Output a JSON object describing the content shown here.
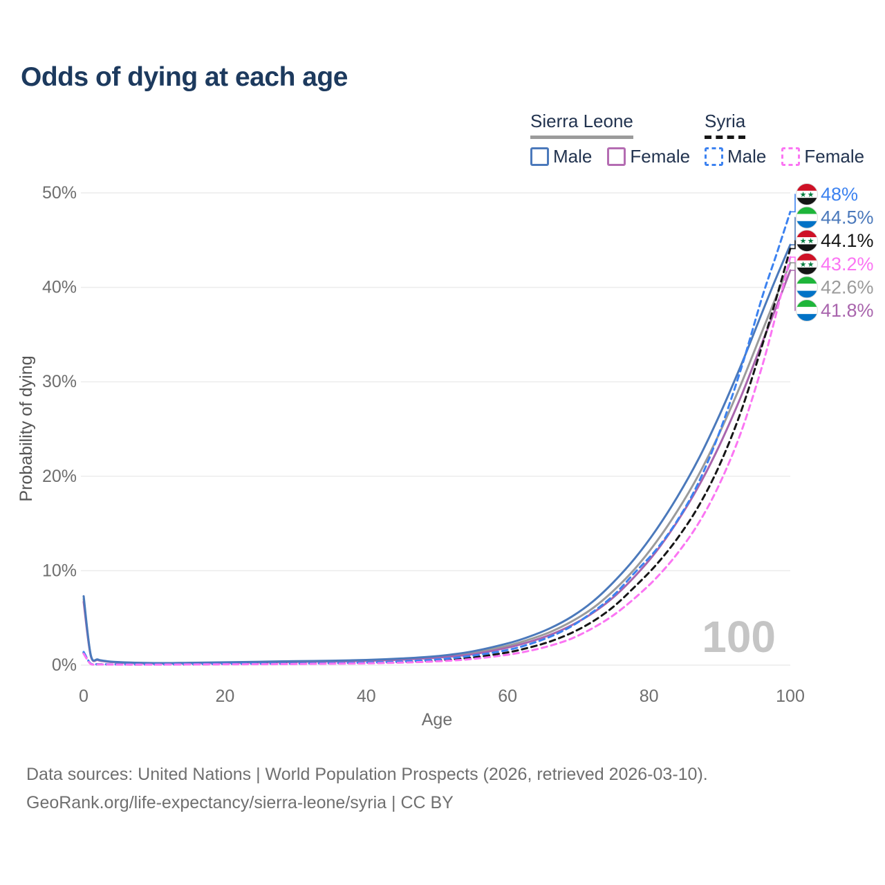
{
  "title": "Odds of dying at each age",
  "watermark": "100",
  "colors": {
    "title": "#1d3a5e",
    "legend_text": "#22334f",
    "axis_text": "#6e6e6e",
    "y_axis_title": "#555555",
    "grid": "#ececec",
    "watermark": "#c5c5c5",
    "flag_sierra_leone": [
      "#1EB53A",
      "#ffffff",
      "#0072C6"
    ],
    "flag_syria": [
      "#CE1126",
      "#ffffff",
      "#141414"
    ],
    "flag_syria_star": "#007A3D"
  },
  "legend": {
    "groups": [
      {
        "country": "Sierra Leone",
        "underline_style": "solid",
        "underline_color": "#9b9b9b",
        "items": [
          {
            "label": "Male",
            "color": "#4b79bb",
            "dashed": false
          },
          {
            "label": "Female",
            "color": "#b46cb2",
            "dashed": false
          }
        ]
      },
      {
        "country": "Syria",
        "underline_style": "dashed",
        "underline_color": "#161616",
        "items": [
          {
            "label": "Male",
            "color": "#3c82f0",
            "dashed": true
          },
          {
            "label": "Female",
            "color": "#fb75f3",
            "dashed": true
          }
        ]
      }
    ]
  },
  "chart_data": {
    "type": "line",
    "xlabel": "Age",
    "ylabel": "Probability of dying",
    "xlim": [
      0,
      100
    ],
    "ylim": [
      0,
      50
    ],
    "grid": "horizontal",
    "x_ticks": [
      {
        "label": "0",
        "value": 0
      },
      {
        "label": "20",
        "value": 20
      },
      {
        "label": "40",
        "value": 40
      },
      {
        "label": "60",
        "value": 60
      },
      {
        "label": "80",
        "value": 80
      },
      {
        "label": "100",
        "value": 100
      }
    ],
    "y_ticks": [
      {
        "label": "0%",
        "value": 0
      },
      {
        "label": "10%",
        "value": 10
      },
      {
        "label": "20%",
        "value": 20
      },
      {
        "label": "30%",
        "value": 30
      },
      {
        "label": "40%",
        "value": 40
      },
      {
        "label": "50%",
        "value": 50
      }
    ],
    "ages": [
      0,
      1,
      2,
      3,
      5,
      10,
      15,
      20,
      25,
      30,
      35,
      40,
      45,
      50,
      55,
      60,
      63,
      66,
      69,
      72,
      75,
      78,
      81,
      84,
      87,
      90,
      93,
      96,
      98,
      100
    ],
    "series": [
      {
        "id": "sierra-leone-total",
        "name": "Sierra Leone",
        "flag": "sierra-leone",
        "color": "#9b9b9b",
        "dashed": false,
        "end_label": "42.6%",
        "values": [
          7.0,
          1.05,
          0.57,
          0.42,
          0.3,
          0.2,
          0.23,
          0.27,
          0.33,
          0.38,
          0.43,
          0.5,
          0.64,
          0.86,
          1.3,
          2.05,
          2.7,
          3.5,
          4.6,
          6.0,
          7.9,
          10.2,
          13.0,
          16.3,
          20.1,
          24.6,
          29.7,
          35.3,
          39.0,
          42.6
        ]
      },
      {
        "id": "sierra-leone-female",
        "name": "Sierra Leone Female",
        "flag": "sierra-leone",
        "color": "#a965ad",
        "dashed": false,
        "end_label": "41.8%",
        "values": [
          6.7,
          1.0,
          0.54,
          0.4,
          0.28,
          0.19,
          0.21,
          0.24,
          0.29,
          0.34,
          0.39,
          0.45,
          0.58,
          0.78,
          1.15,
          1.85,
          2.45,
          3.2,
          4.2,
          5.5,
          7.2,
          9.4,
          12.0,
          15.2,
          18.9,
          23.3,
          28.4,
          34.1,
          37.9,
          41.8
        ]
      },
      {
        "id": "sierra-leone-male",
        "name": "Sierra Leone Male",
        "flag": "sierra-leone",
        "color": "#4b79bb",
        "dashed": false,
        "end_label": "44.5%",
        "values": [
          7.3,
          1.1,
          0.6,
          0.45,
          0.32,
          0.22,
          0.25,
          0.3,
          0.36,
          0.42,
          0.47,
          0.55,
          0.7,
          0.95,
          1.45,
          2.3,
          3.0,
          3.9,
          5.1,
          6.7,
          8.8,
          11.3,
          14.3,
          17.8,
          21.8,
          26.5,
          31.7,
          37.3,
          41.0,
          44.5
        ]
      },
      {
        "id": "syria-total",
        "name": "Syria",
        "flag": "syria",
        "color": "#161616",
        "dashed": true,
        "end_label": "44.1%",
        "values": [
          1.3,
          0.14,
          0.09,
          0.08,
          0.07,
          0.07,
          0.08,
          0.11,
          0.13,
          0.15,
          0.18,
          0.24,
          0.33,
          0.5,
          0.8,
          1.35,
          1.85,
          2.5,
          3.4,
          4.6,
          6.2,
          8.3,
          10.6,
          13.4,
          16.8,
          21.2,
          26.8,
          33.8,
          38.8,
          44.1
        ]
      },
      {
        "id": "syria-male",
        "name": "Syria Male",
        "flag": "syria",
        "color": "#3c82f0",
        "dashed": true,
        "end_label": "48%",
        "values": [
          1.4,
          0.16,
          0.1,
          0.09,
          0.08,
          0.08,
          0.1,
          0.13,
          0.15,
          0.17,
          0.21,
          0.28,
          0.4,
          0.6,
          1.0,
          1.6,
          2.2,
          3.0,
          4.1,
          5.6,
          7.4,
          9.8,
          12.2,
          15.3,
          19.3,
          24.7,
          31.3,
          38.9,
          43.4,
          48.0
        ]
      },
      {
        "id": "syria-female",
        "name": "Syria Female",
        "flag": "syria",
        "color": "#fb75f3",
        "dashed": true,
        "end_label": "43.2%",
        "values": [
          1.2,
          0.12,
          0.08,
          0.07,
          0.06,
          0.06,
          0.07,
          0.09,
          0.1,
          0.12,
          0.15,
          0.19,
          0.27,
          0.4,
          0.65,
          1.1,
          1.5,
          2.05,
          2.8,
          3.9,
          5.3,
          7.1,
          9.2,
          11.8,
          15.0,
          19.2,
          24.6,
          31.6,
          37.2,
          43.2
        ]
      }
    ],
    "end_label_order": [
      "syria-male",
      "sierra-leone-male",
      "syria-total",
      "syria-female",
      "sierra-leone-total",
      "sierra-leone-female"
    ]
  },
  "footer": {
    "line1": "Data sources: United Nations | World Population Prospects (2026, retrieved 2026-03-10).",
    "line2": "GeoRank.org/life-expectancy/sierra-leone/syria | CC BY"
  }
}
